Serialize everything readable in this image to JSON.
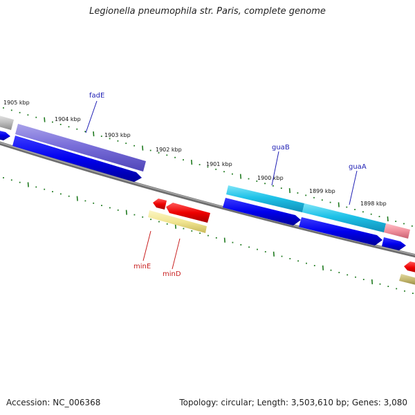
{
  "title": "Legionella pneumophila str. Paris, complete genome",
  "footer": {
    "accession": "Accession: NC_006368",
    "summary": "Topology: circular; Length: 3,503,610 bp; Genes: 3,080"
  },
  "colors": {
    "backbone": "#808080",
    "tick": "#1f7a1f",
    "forward_label": "#1e1eb4",
    "reverse_label": "#c81e1e",
    "cds_forward": "#0000ee",
    "cds_reverse": "#ee0000"
  },
  "kbp_labels": [
    "1905 kbp",
    "1904 kbp",
    "1903 kbp",
    "1902 kbp",
    "1901 kbp",
    "1900 kbp",
    "1899 kbp",
    "1898 kbp"
  ],
  "gene_labels": {
    "forward": [
      "fadE",
      "guaB",
      "guaA"
    ],
    "reverse": [
      "minE",
      "minD"
    ]
  }
}
